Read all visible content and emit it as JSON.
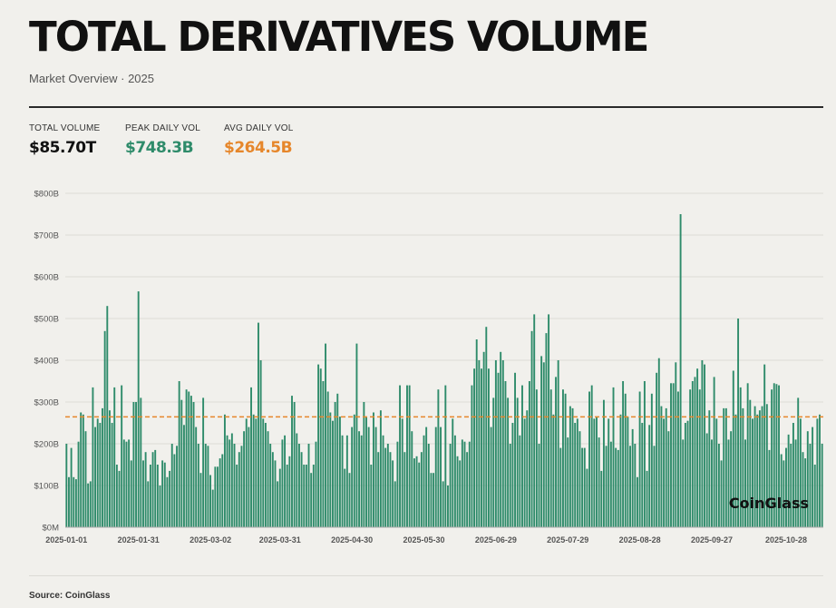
{
  "header": {
    "title": "TOTAL DERIVATIVES VOLUME",
    "subtitle": "Market Overview · 2025"
  },
  "stats": [
    {
      "label": "TOTAL VOLUME",
      "value": "$85.70T",
      "color": "#111111"
    },
    {
      "label": "PEAK DAILY VOL",
      "value": "$748.3B",
      "color": "#2e8b6a"
    },
    {
      "label": "AVG DAILY VOL",
      "value": "$264.5B",
      "color": "#e6862a"
    }
  ],
  "watermark": "CoinGlass",
  "footer": {
    "source": "Source: CoinGlass"
  },
  "colors": {
    "bar": "#2e8b6a",
    "avg_line": "#e6862a",
    "grid": "#dddcd6",
    "background": "#f1f0ec"
  },
  "chart_data": {
    "type": "bar",
    "start_date": "2025-01-01",
    "y_unit": "billion USD",
    "ylim": [
      0,
      800
    ],
    "y_ticks": [
      "$0M",
      "$100B",
      "$200B",
      "$300B",
      "$400B",
      "$500B",
      "$600B",
      "$700B",
      "$800B"
    ],
    "x_ticks": [
      "2025-01-01",
      "2025-01-31",
      "2025-03-02",
      "2025-03-31",
      "2025-04-30",
      "2025-05-30",
      "2025-06-29",
      "2025-07-29",
      "2025-08-28",
      "2025-09-27",
      "2025-10-28"
    ],
    "grid": true,
    "avg_line": 264.5,
    "values": [
      200,
      120,
      190,
      120,
      115,
      205,
      275,
      270,
      230,
      105,
      110,
      335,
      240,
      260,
      250,
      285,
      470,
      530,
      280,
      250,
      335,
      150,
      135,
      340,
      210,
      205,
      210,
      160,
      300,
      300,
      565,
      310,
      160,
      180,
      110,
      150,
      180,
      185,
      150,
      100,
      160,
      155,
      120,
      135,
      200,
      175,
      195,
      350,
      305,
      245,
      330,
      325,
      315,
      300,
      240,
      200,
      130,
      310,
      200,
      195,
      125,
      90,
      145,
      145,
      165,
      175,
      270,
      220,
      210,
      225,
      200,
      150,
      180,
      195,
      230,
      260,
      240,
      335,
      270,
      260,
      490,
      400,
      260,
      250,
      230,
      200,
      180,
      160,
      110,
      140,
      210,
      220,
      150,
      170,
      315,
      300,
      225,
      200,
      180,
      150,
      150,
      200,
      130,
      150,
      205,
      390,
      380,
      350,
      440,
      325,
      275,
      255,
      300,
      320,
      265,
      220,
      140,
      220,
      130,
      240,
      270,
      440,
      230,
      220,
      300,
      265,
      240,
      150,
      275,
      240,
      180,
      280,
      220,
      190,
      200,
      180,
      160,
      110,
      205,
      340,
      260,
      180,
      340,
      340,
      230,
      165,
      170,
      155,
      180,
      220,
      240,
      200,
      130,
      130,
      240,
      330,
      240,
      110,
      340,
      100,
      200,
      260,
      220,
      170,
      160,
      210,
      205,
      180,
      205,
      340,
      380,
      450,
      400,
      380,
      420,
      480,
      380,
      240,
      310,
      400,
      370,
      420,
      400,
      350,
      310,
      200,
      250,
      370,
      310,
      220,
      340,
      260,
      280,
      350,
      470,
      510,
      330,
      200,
      410,
      395,
      465,
      510,
      330,
      270,
      360,
      400,
      190,
      330,
      320,
      215,
      290,
      285,
      250,
      260,
      230,
      190,
      190,
      140,
      325,
      340,
      260,
      265,
      215,
      135,
      305,
      195,
      260,
      205,
      335,
      190,
      185,
      270,
      350,
      320,
      265,
      195,
      235,
      200,
      120,
      325,
      250,
      350,
      135,
      245,
      320,
      195,
      370,
      405,
      290,
      260,
      285,
      230,
      345,
      345,
      395,
      325,
      750,
      210,
      250,
      255,
      330,
      350,
      360,
      380,
      330,
      400,
      390,
      225,
      280,
      210,
      360,
      260,
      200,
      160,
      285,
      285,
      210,
      230,
      375,
      270,
      500,
      335,
      285,
      210,
      345,
      305,
      260,
      290,
      270,
      280,
      290,
      390,
      295,
      185,
      330,
      345,
      343,
      340,
      175,
      160,
      190,
      222,
      200,
      250,
      210,
      310,
      260,
      180,
      165,
      230,
      200,
      240,
      150,
      260,
      270,
      200
    ]
  }
}
